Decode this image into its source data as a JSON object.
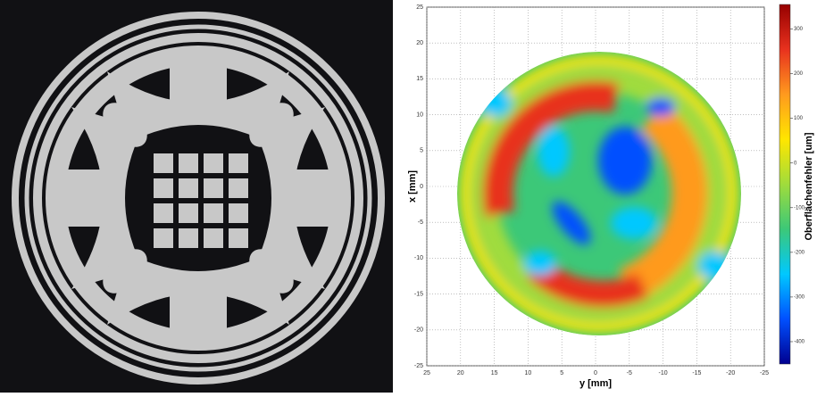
{
  "chart_data": {
    "type": "heatmap",
    "xlabel": "y [mm]",
    "ylabel": "x [mm]",
    "colorbar_label": "Oberflächenfehler [um]",
    "xlim": [
      25,
      -25
    ],
    "xticks": [
      25,
      20,
      15,
      10,
      5,
      0,
      -5,
      -10,
      -15,
      -20,
      -25
    ],
    "ylim": [
      -25,
      25
    ],
    "yticks": [
      25,
      20,
      15,
      10,
      5,
      0,
      -5,
      -10,
      -15,
      -20,
      -25
    ],
    "clim": [
      -450,
      355
    ],
    "cticks": [
      300,
      200,
      100,
      0,
      -100,
      -200,
      -300,
      -400
    ],
    "colormap": [
      "#00008f",
      "#0050ff",
      "#00c8ff",
      "#3cc878",
      "#a0dc3c",
      "#ffe600",
      "#ff9a1e",
      "#e8321e",
      "#960000"
    ],
    "grid": true
  }
}
